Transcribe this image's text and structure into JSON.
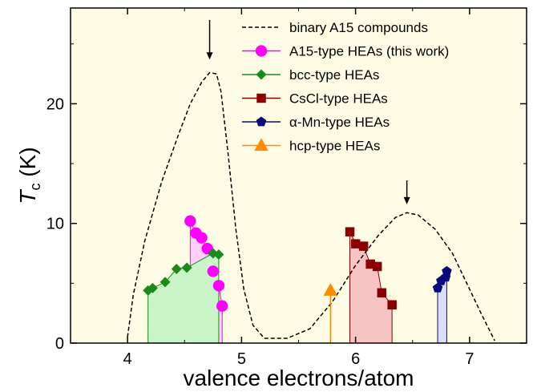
{
  "chart_data": {
    "type": "line",
    "xlabel": "valence electrons/atom",
    "ylabel": {
      "symbol": "T",
      "subscript": "c",
      "unit": " (K)"
    },
    "xlim": [
      3.5,
      7.5
    ],
    "ylim": [
      0,
      28
    ],
    "xticks": [
      4,
      5,
      6,
      7
    ],
    "yticks": [
      0,
      10,
      20
    ],
    "background": "#FFFCE6",
    "legend_position": "top-right",
    "series": [
      {
        "name": "binary A15 compounds",
        "style": "dashed",
        "color": "#000000",
        "points": [
          [
            4.0,
            0.5
          ],
          [
            4.05,
            4.0
          ],
          [
            4.15,
            8.5
          ],
          [
            4.3,
            13.5
          ],
          [
            4.45,
            17.5
          ],
          [
            4.55,
            20.0
          ],
          [
            4.65,
            21.8
          ],
          [
            4.72,
            22.6
          ],
          [
            4.78,
            22.5
          ],
          [
            4.82,
            21.0
          ],
          [
            4.88,
            16.0
          ],
          [
            4.95,
            9.5
          ],
          [
            5.02,
            4.5
          ],
          [
            5.1,
            1.5
          ],
          [
            5.2,
            0.4
          ],
          [
            5.4,
            0.4
          ],
          [
            5.6,
            1.2
          ],
          [
            5.8,
            3.5
          ],
          [
            6.0,
            6.5
          ],
          [
            6.2,
            9.0
          ],
          [
            6.35,
            10.5
          ],
          [
            6.45,
            10.9
          ],
          [
            6.55,
            10.7
          ],
          [
            6.7,
            9.5
          ],
          [
            6.85,
            7.5
          ],
          [
            7.0,
            4.5
          ],
          [
            7.1,
            2.5
          ],
          [
            7.22,
            0.2
          ]
        ]
      },
      {
        "name": "A15-type HEAs (this work)",
        "marker": "circle",
        "color": "#FF00FF",
        "fill": "#FFD0F8",
        "points": [
          [
            4.55,
            10.2
          ],
          [
            4.6,
            9.2
          ],
          [
            4.65,
            8.8
          ],
          [
            4.7,
            7.9
          ],
          [
            4.75,
            6.0
          ],
          [
            4.8,
            4.8
          ],
          [
            4.83,
            3.1
          ]
        ]
      },
      {
        "name": "bcc-type HEAs",
        "marker": "diamond",
        "color": "#1A8A1A",
        "fill": "#C9F5C9",
        "points": [
          [
            4.18,
            4.4
          ],
          [
            4.22,
            4.6
          ],
          [
            4.33,
            5.1
          ],
          [
            4.43,
            6.2
          ],
          [
            4.52,
            6.3
          ],
          [
            4.75,
            7.5
          ],
          [
            4.8,
            7.4
          ]
        ]
      },
      {
        "name": "CsCl-type HEAs",
        "marker": "square",
        "color": "#8B0000",
        "fill": "#F7C4C4",
        "points": [
          [
            5.95,
            9.3
          ],
          [
            6.0,
            8.3
          ],
          [
            6.07,
            8.1
          ],
          [
            6.13,
            6.6
          ],
          [
            6.19,
            6.4
          ],
          [
            6.23,
            4.2
          ],
          [
            6.32,
            3.2
          ]
        ]
      },
      {
        "name": "α-Mn-type HEAs",
        "marker": "pentagon",
        "color": "#0A0A7A",
        "fill": "#D8E0F8",
        "points": [
          [
            6.72,
            4.6
          ],
          [
            6.75,
            5.2
          ],
          [
            6.79,
            5.5
          ],
          [
            6.8,
            6.0
          ]
        ]
      },
      {
        "name": "hcp-type HEAs",
        "marker": "triangle",
        "color": "#FF8C00",
        "points": [
          [
            5.78,
            4.4
          ]
        ]
      }
    ],
    "annotations": [
      {
        "type": "arrow-down",
        "x": 4.72,
        "y_from": 27,
        "y_to": 23.7
      },
      {
        "type": "arrow-down",
        "x": 6.45,
        "y_from": 13.6,
        "y_to": 11.6
      }
    ]
  }
}
